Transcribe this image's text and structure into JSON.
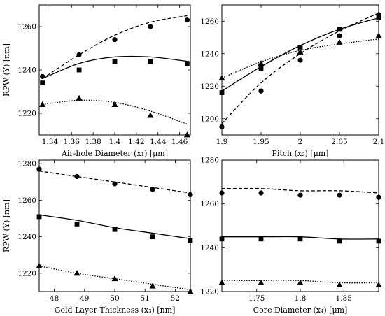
{
  "chart_data": [
    {
      "type": "scatter",
      "xlabel": "Air-hole Diameter (x₁) [μm]",
      "ylabel": "RPW (Y) [nm]",
      "xlim": [
        1.33,
        1.47
      ],
      "ylim": [
        1210,
        1270
      ],
      "xticks": [
        "1.34",
        "1.36",
        "1.38",
        "1.4",
        "1.42",
        "1.44",
        "1.46"
      ],
      "yticks": [
        "1220",
        "1240",
        "1260"
      ],
      "x": [
        1.333,
        1.367,
        1.4,
        1.433,
        1.467
      ],
      "series": [
        {
          "marker": "circle",
          "line": "dashed",
          "values": [
            1237,
            1247,
            1254,
            1260,
            1263
          ],
          "fit": [
            1236,
            1247,
            1256,
            1262,
            1265
          ]
        },
        {
          "marker": "square",
          "line": "solid",
          "values": [
            1234,
            1240,
            1244,
            1244,
            1243
          ],
          "fit": [
            1236,
            1243,
            1246,
            1246,
            1244
          ]
        },
        {
          "marker": "triangle",
          "line": "dotted",
          "values": [
            1224,
            1227,
            1224,
            1219,
            1210
          ],
          "fit": [
            1224,
            1226,
            1225,
            1221,
            1215
          ]
        }
      ]
    },
    {
      "type": "scatter",
      "xlabel": "Pitch (x₂) [μm]",
      "ylabel": "",
      "xlim": [
        1.9,
        2.1
      ],
      "ylim": [
        1190,
        1270
      ],
      "xticks": [
        "1.9",
        "1.95",
        "2",
        "2.05",
        "2.1"
      ],
      "yticks": [
        "1200",
        "1220",
        "1240",
        "1260"
      ],
      "x": [
        1.9,
        1.95,
        2.0,
        2.05,
        2.1
      ],
      "series": [
        {
          "marker": "circle",
          "line": "dashed",
          "values": [
            1195,
            1217,
            1236,
            1251,
            1264
          ],
          "fit": [
            1197,
            1222,
            1240,
            1254,
            1265
          ]
        },
        {
          "marker": "square",
          "line": "solid",
          "values": [
            1216,
            1231,
            1244,
            1255,
            1262
          ],
          "fit": [
            1217,
            1232,
            1245,
            1255,
            1262
          ]
        },
        {
          "marker": "triangle",
          "line": "dotted",
          "values": [
            1225,
            1234,
            1241,
            1247,
            1251
          ],
          "fit": [
            1225,
            1235,
            1242,
            1246,
            1249
          ]
        }
      ]
    },
    {
      "type": "scatter",
      "xlabel": "Gold Layer Thickness (x₃) [nm]",
      "ylabel": "RPW (Y) [nm]",
      "xlim": [
        47.5,
        52.5
      ],
      "ylim": [
        1210,
        1282
      ],
      "xticks": [
        "48",
        "49",
        "50",
        "51",
        "52"
      ],
      "yticks": [
        "1220",
        "1240",
        "1260",
        "1280"
      ],
      "x": [
        47.5,
        48.75,
        50,
        51.25,
        52.5
      ],
      "series": [
        {
          "marker": "circle",
          "line": "dashed",
          "values": [
            1277,
            1273,
            1269,
            1266,
            1263
          ],
          "fit": [
            1276,
            1273,
            1270,
            1267,
            1264
          ]
        },
        {
          "marker": "square",
          "line": "solid",
          "values": [
            1251,
            1247,
            1244,
            1240,
            1238
          ],
          "fit": [
            1252,
            1249,
            1245,
            1242,
            1239
          ]
        },
        {
          "marker": "triangle",
          "line": "dotted",
          "values": [
            1224,
            1220,
            1217,
            1213,
            1210
          ],
          "fit": [
            1224,
            1220,
            1217,
            1214,
            1211
          ]
        }
      ]
    },
    {
      "type": "scatter",
      "xlabel": "Core Diameter (x₄) [μm]",
      "ylabel": "",
      "xlim": [
        1.71,
        1.89
      ],
      "ylim": [
        1220,
        1280
      ],
      "xticks": [
        "1.75",
        "1.8",
        "1.85"
      ],
      "yticks": [
        "1220",
        "1240",
        "1260",
        "1280"
      ],
      "x": [
        1.71,
        1.755,
        1.8,
        1.845,
        1.89
      ],
      "series": [
        {
          "marker": "circle",
          "line": "dashed",
          "values": [
            1265,
            1265,
            1264,
            1264,
            1263
          ],
          "fit": [
            1267,
            1267,
            1266,
            1266,
            1265
          ]
        },
        {
          "marker": "square",
          "line": "solid",
          "values": [
            1244,
            1244,
            1244,
            1243,
            1243
          ],
          "fit": [
            1245,
            1245,
            1245,
            1244,
            1244
          ]
        },
        {
          "marker": "triangle",
          "line": "dotted",
          "values": [
            1224,
            1224,
            1224,
            1223,
            1223
          ],
          "fit": [
            1225,
            1225,
            1225,
            1224,
            1224
          ]
        }
      ]
    }
  ]
}
